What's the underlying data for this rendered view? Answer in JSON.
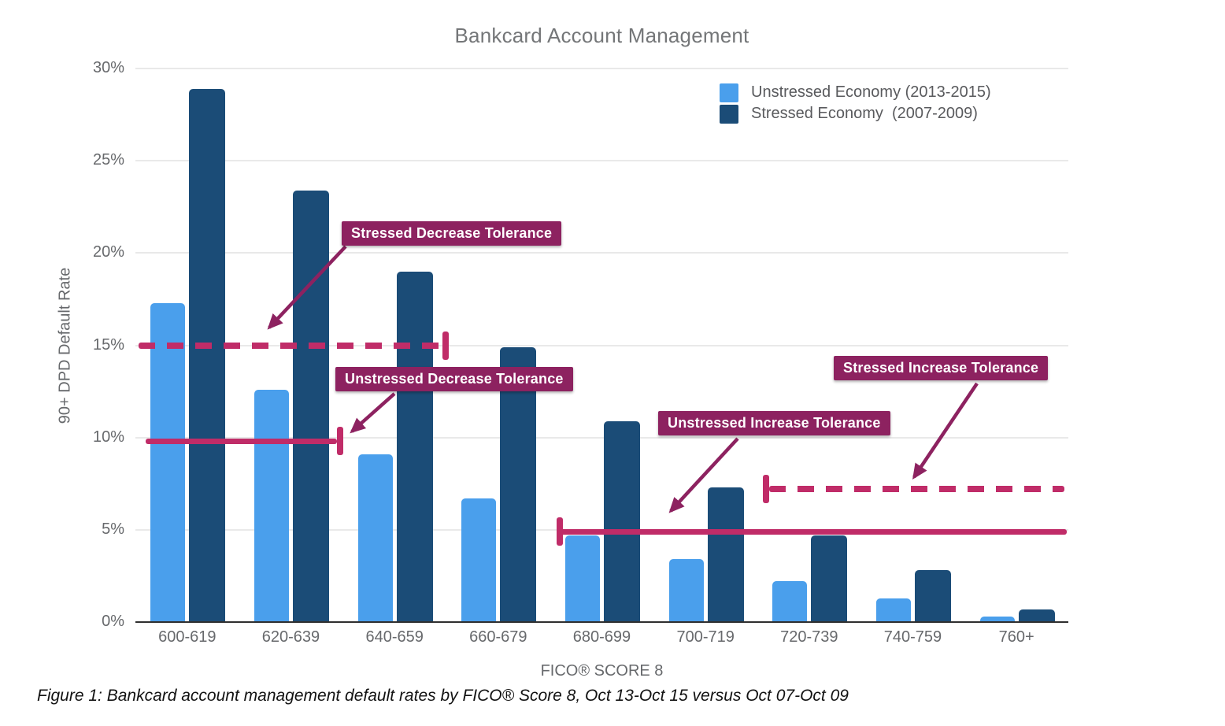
{
  "title": "Bankcard Account Management",
  "caption": "Figure 1: Bankcard account management default rates by FICO® Score 8, Oct 13-Oct 15 versus Oct 07-Oct 09",
  "colors": {
    "unstressed_bar": "#4A9FEC",
    "stressed_bar": "#1B4C77",
    "tolerance_line": "#C02C68",
    "annotation_box": "#8D2260",
    "gridline": "#E9E9E9",
    "axis_line": "#2F2F2F",
    "title_text": "#747678",
    "axis_text": "#67696C"
  },
  "legend": {
    "items": [
      {
        "label": "Unstressed Economy (2013-2015)",
        "color_key": "unstressed_bar"
      },
      {
        "label": "Stressed Economy  (2007-2009)",
        "color_key": "stressed_bar"
      }
    ]
  },
  "chart_data": {
    "type": "bar",
    "title": "Bankcard Account Management",
    "xlabel": "FICO® SCORE 8",
    "ylabel": "90+ DPD Default Rate",
    "ylim": [
      0,
      30
    ],
    "ytick_step": 5,
    "ytick_suffix": "%",
    "grid": true,
    "legend_position": "top-right-inside",
    "categories": [
      "600-619",
      "620-639",
      "640-659",
      "660-679",
      "680-699",
      "700-719",
      "720-739",
      "740-759",
      "760+"
    ],
    "series": [
      {
        "name": "Unstressed Economy (2013-2015)",
        "values": [
          17.3,
          12.6,
          9.1,
          6.7,
          4.7,
          3.4,
          2.2,
          1.3,
          0.3
        ]
      },
      {
        "name": "Stressed Economy (2007-2009)",
        "values": [
          28.9,
          23.4,
          19.0,
          14.9,
          10.9,
          7.3,
          4.7,
          2.8,
          0.7
        ]
      }
    ],
    "annotations": [
      {
        "label": "Stressed Decrease Tolerance",
        "line_style": "dashed",
        "value_pct": 15.0,
        "tick_end": "right"
      },
      {
        "label": "Unstressed Decrease Tolerance",
        "line_style": "solid",
        "value_pct": 9.8,
        "tick_end": "right"
      },
      {
        "label": "Unstressed Increase Tolerance",
        "line_style": "solid",
        "value_pct": 4.9,
        "tick_end": "left"
      },
      {
        "label": "Stressed Increase Tolerance",
        "line_style": "dashed",
        "value_pct": 7.2,
        "tick_end": "left"
      }
    ]
  }
}
